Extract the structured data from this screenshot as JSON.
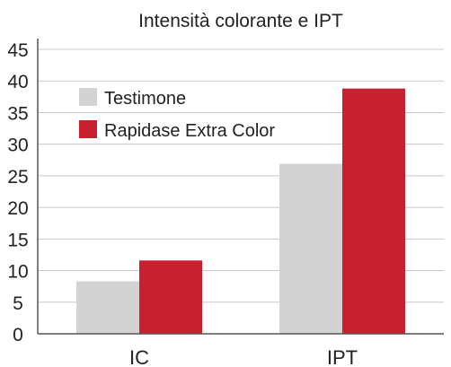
{
  "chart_data": {
    "type": "bar",
    "title": "Intensità colorante e IPT",
    "categories": [
      "IC",
      "IPT"
    ],
    "series": [
      {
        "name": "Testimone",
        "values": [
          8.3,
          26.9
        ],
        "color": "#d3d3d3"
      },
      {
        "name": "Rapidase Extra Color",
        "values": [
          11.6,
          38.8
        ],
        "color": "#c8202f"
      }
    ],
    "ylim": [
      0,
      45
    ],
    "yticks": [
      0,
      5,
      10,
      15,
      20,
      25,
      30,
      35,
      40,
      45
    ],
    "xlabel": "",
    "ylabel": "",
    "grid": true,
    "legend_position": "top-left",
    "gridline_color": "#c8c8c8",
    "axis_color": "#555555"
  }
}
